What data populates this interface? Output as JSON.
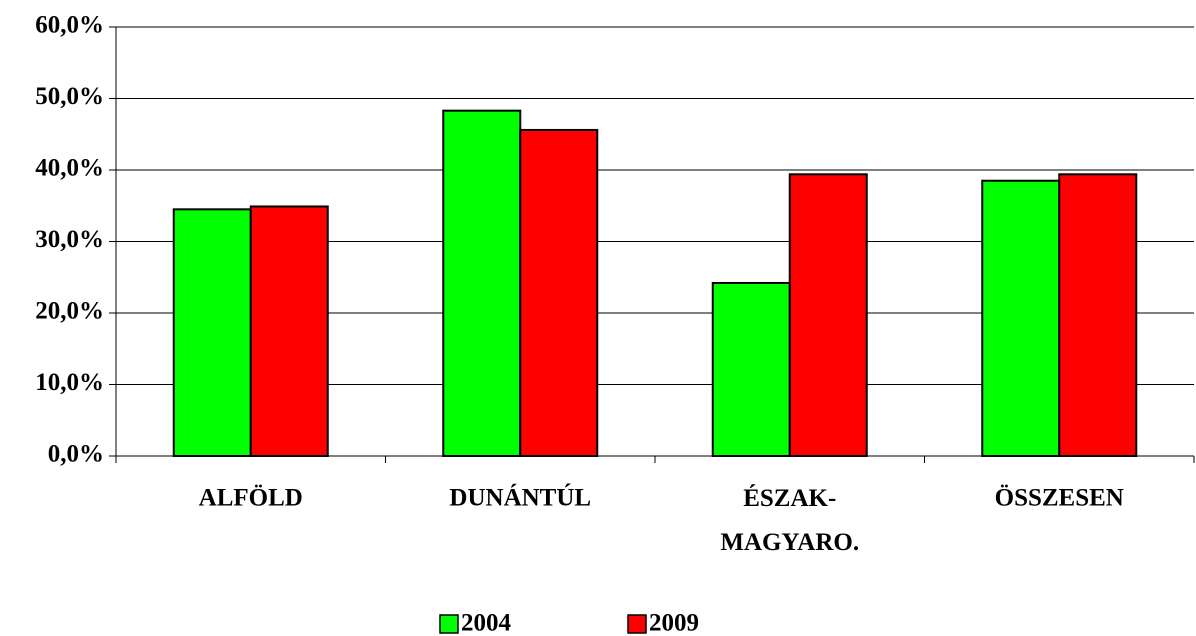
{
  "chart_data": {
    "type": "bar",
    "categories": [
      "ALFÖLD",
      "DUNÁNTÚL",
      "ÉSZAK-MAGYARO.",
      "ÖSSZESEN"
    ],
    "series": [
      {
        "name": "2004",
        "color": "#00ff00",
        "values": [
          34.5,
          48.3,
          24.2,
          38.5
        ]
      },
      {
        "name": "2009",
        "color": "#ff0000",
        "values": [
          34.9,
          45.6,
          39.4,
          39.4
        ]
      }
    ],
    "ylim": [
      0,
      60
    ],
    "yticks": [
      {
        "value": 0,
        "label": "0,0%"
      },
      {
        "value": 10,
        "label": "10,0%"
      },
      {
        "value": 20,
        "label": "20,0%"
      },
      {
        "value": 30,
        "label": "30,0%"
      },
      {
        "value": 40,
        "label": "40,0%"
      },
      {
        "value": 50,
        "label": "50,0%"
      },
      {
        "value": 60,
        "label": "60,0%"
      }
    ],
    "grid": true,
    "legend": "bottom"
  }
}
